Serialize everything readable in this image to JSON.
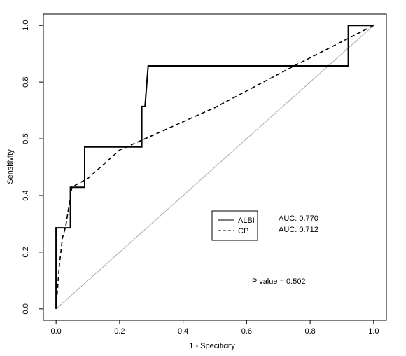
{
  "chart_data": {
    "type": "line",
    "title": "",
    "xlabel": "1 - Specificity",
    "ylabel": "Sensitivity",
    "xlim": [
      -0.04,
      1.04
    ],
    "ylim": [
      -0.04,
      1.04
    ],
    "xticks": [
      0.0,
      0.2,
      0.4,
      0.6,
      0.8,
      1.0
    ],
    "yticks": [
      0.0,
      0.2,
      0.4,
      0.6,
      0.8,
      1.0
    ],
    "xtick_labels": [
      "0.0",
      "0.2",
      "0.4",
      "0.6",
      "0.8",
      "1.0"
    ],
    "ytick_labels": [
      "0.0",
      "0.2",
      "0.4",
      "0.6",
      "0.8",
      "1.0"
    ],
    "grid": false,
    "legend_placement": "center-right",
    "reference_line": {
      "x": [
        0,
        1
      ],
      "y": [
        0,
        1
      ],
      "color": "#aaaaaa"
    },
    "series": [
      {
        "name": "ALBI",
        "style": "solid",
        "color": "#000000",
        "x": [
          0.0,
          0.0,
          0.045,
          0.045,
          0.09,
          0.09,
          0.27,
          0.27,
          0.28,
          0.29,
          0.29,
          0.92,
          0.92,
          1.0
        ],
        "y": [
          0.0,
          0.286,
          0.286,
          0.429,
          0.429,
          0.571,
          0.571,
          0.714,
          0.714,
          0.857,
          0.857,
          0.857,
          1.0,
          1.0
        ]
      },
      {
        "name": "CP",
        "style": "dashed",
        "color": "#000000",
        "x": [
          0.0,
          0.01,
          0.02,
          0.03,
          0.05,
          0.1,
          0.2,
          0.5,
          0.75,
          1.0
        ],
        "y": [
          0.0,
          0.15,
          0.25,
          0.29,
          0.43,
          0.46,
          0.56,
          0.71,
          0.857,
          1.0
        ]
      }
    ],
    "annotations": {
      "auc_albi": "AUC: 0.770",
      "auc_cp": "AUC: 0.712",
      "p_value": "P value =  0.502"
    }
  }
}
